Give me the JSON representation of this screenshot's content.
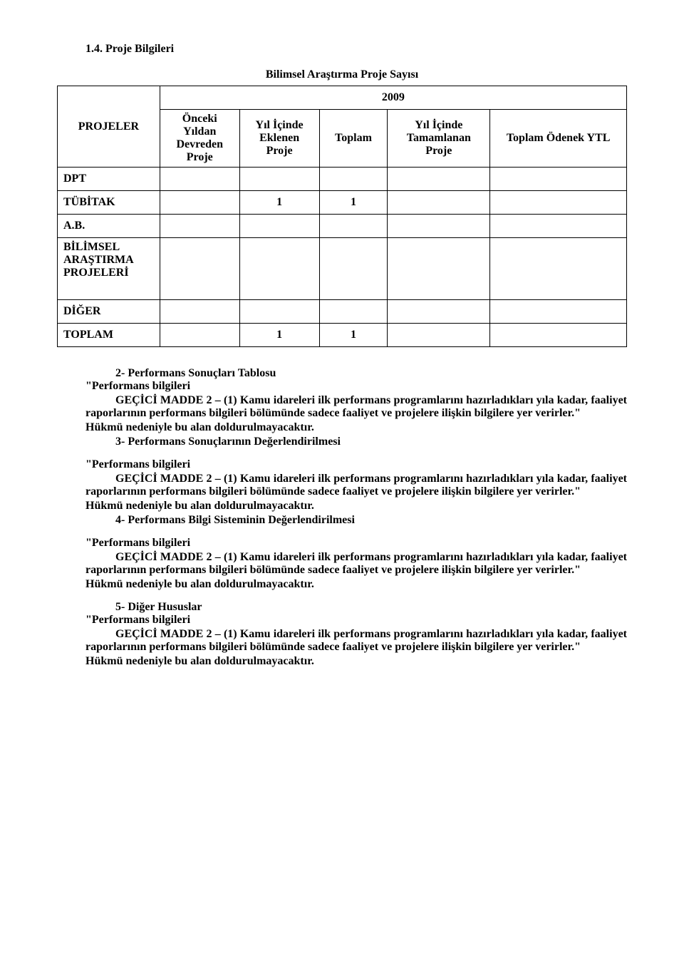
{
  "heading": "1.4. Proje Bilgileri",
  "table": {
    "title": "Bilimsel Araştırma Proje Sayısı",
    "year": "2009",
    "columns": {
      "projeler": "PROJELER",
      "onceki": "Önceki Yıldan Devreden Proje",
      "yil_eklenen": "Yıl İçinde Eklenen Proje",
      "toplam": "Toplam",
      "yil_tamamlanan": "Yıl İçinde Tamamlanan Proje",
      "toplam_odenek": "Toplam Ödenek YTL"
    },
    "rows": {
      "dpt": {
        "label": "DPT"
      },
      "tubitak": {
        "label": "TÜBİTAK",
        "yil_eklenen": "1",
        "toplam": "1"
      },
      "ab": {
        "label": "A.B."
      },
      "bilimsel": {
        "label": "BİLİMSEL ARAŞTIRMA PROJELERİ"
      },
      "diger": {
        "label": "DİĞER"
      },
      "toplam_row": {
        "label": "TOPLAM",
        "yil_eklenen": "1",
        "toplam": "1"
      }
    }
  },
  "items": {
    "num2": "2- Performans Sonuçları Tablosu",
    "num3": "3- Performans Sonuçlarının Değerlendirilmesi",
    "num4": "4- Performans Bilgi Sisteminin Değerlendirilmesi",
    "num5": "5- Diğer Hususlar",
    "quote_open": "\"Performans bilgileri",
    "gecici": "GEÇİCİ MADDE 2 – (1) Kamu idareleri ilk performans programlarını hazırladıkları yıla kadar, faaliyet raporlarının performans bilgileri bölümünde sadece faaliyet ve projelere ilişkin bilgilere yer verirler.\"",
    "hukum": "Hükmü nedeniyle bu alan doldurulmayacaktır."
  }
}
